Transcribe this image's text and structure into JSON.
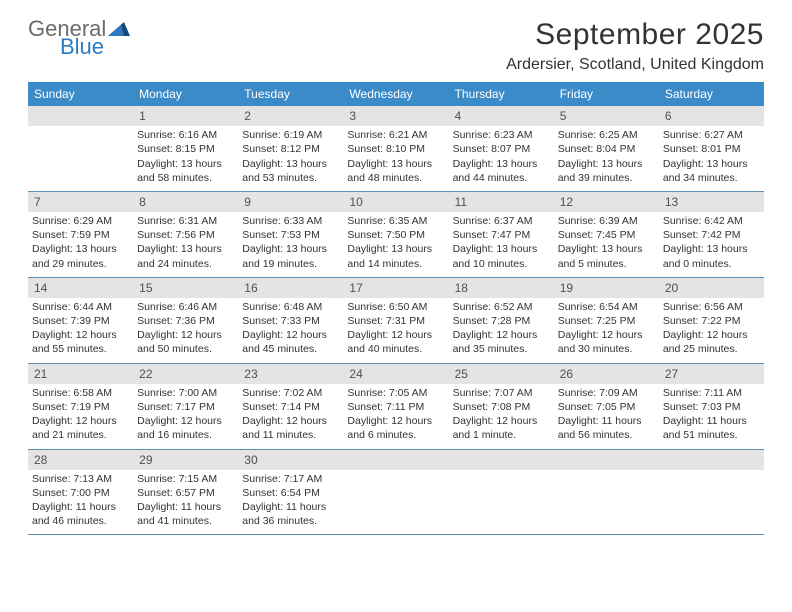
{
  "logo": {
    "text_general": "General",
    "text_blue": "Blue"
  },
  "title": "September 2025",
  "location": "Ardersier, Scotland, United Kingdom",
  "colors": {
    "header_bg": "#3b8bc9",
    "header_text": "#ffffff",
    "daynum_bg": "#e4e4e4",
    "row_border": "#5a8fb8",
    "logo_gray": "#6b6b6b",
    "logo_blue": "#2d7cc1"
  },
  "weekdays": [
    "Sunday",
    "Monday",
    "Tuesday",
    "Wednesday",
    "Thursday",
    "Friday",
    "Saturday"
  ],
  "weeks": [
    [
      {
        "num": "",
        "sunrise": "",
        "sunset": "",
        "daylight": ""
      },
      {
        "num": "1",
        "sunrise": "Sunrise: 6:16 AM",
        "sunset": "Sunset: 8:15 PM",
        "daylight": "Daylight: 13 hours and 58 minutes."
      },
      {
        "num": "2",
        "sunrise": "Sunrise: 6:19 AM",
        "sunset": "Sunset: 8:12 PM",
        "daylight": "Daylight: 13 hours and 53 minutes."
      },
      {
        "num": "3",
        "sunrise": "Sunrise: 6:21 AM",
        "sunset": "Sunset: 8:10 PM",
        "daylight": "Daylight: 13 hours and 48 minutes."
      },
      {
        "num": "4",
        "sunrise": "Sunrise: 6:23 AM",
        "sunset": "Sunset: 8:07 PM",
        "daylight": "Daylight: 13 hours and 44 minutes."
      },
      {
        "num": "5",
        "sunrise": "Sunrise: 6:25 AM",
        "sunset": "Sunset: 8:04 PM",
        "daylight": "Daylight: 13 hours and 39 minutes."
      },
      {
        "num": "6",
        "sunrise": "Sunrise: 6:27 AM",
        "sunset": "Sunset: 8:01 PM",
        "daylight": "Daylight: 13 hours and 34 minutes."
      }
    ],
    [
      {
        "num": "7",
        "sunrise": "Sunrise: 6:29 AM",
        "sunset": "Sunset: 7:59 PM",
        "daylight": "Daylight: 13 hours and 29 minutes."
      },
      {
        "num": "8",
        "sunrise": "Sunrise: 6:31 AM",
        "sunset": "Sunset: 7:56 PM",
        "daylight": "Daylight: 13 hours and 24 minutes."
      },
      {
        "num": "9",
        "sunrise": "Sunrise: 6:33 AM",
        "sunset": "Sunset: 7:53 PM",
        "daylight": "Daylight: 13 hours and 19 minutes."
      },
      {
        "num": "10",
        "sunrise": "Sunrise: 6:35 AM",
        "sunset": "Sunset: 7:50 PM",
        "daylight": "Daylight: 13 hours and 14 minutes."
      },
      {
        "num": "11",
        "sunrise": "Sunrise: 6:37 AM",
        "sunset": "Sunset: 7:47 PM",
        "daylight": "Daylight: 13 hours and 10 minutes."
      },
      {
        "num": "12",
        "sunrise": "Sunrise: 6:39 AM",
        "sunset": "Sunset: 7:45 PM",
        "daylight": "Daylight: 13 hours and 5 minutes."
      },
      {
        "num": "13",
        "sunrise": "Sunrise: 6:42 AM",
        "sunset": "Sunset: 7:42 PM",
        "daylight": "Daylight: 13 hours and 0 minutes."
      }
    ],
    [
      {
        "num": "14",
        "sunrise": "Sunrise: 6:44 AM",
        "sunset": "Sunset: 7:39 PM",
        "daylight": "Daylight: 12 hours and 55 minutes."
      },
      {
        "num": "15",
        "sunrise": "Sunrise: 6:46 AM",
        "sunset": "Sunset: 7:36 PM",
        "daylight": "Daylight: 12 hours and 50 minutes."
      },
      {
        "num": "16",
        "sunrise": "Sunrise: 6:48 AM",
        "sunset": "Sunset: 7:33 PM",
        "daylight": "Daylight: 12 hours and 45 minutes."
      },
      {
        "num": "17",
        "sunrise": "Sunrise: 6:50 AM",
        "sunset": "Sunset: 7:31 PM",
        "daylight": "Daylight: 12 hours and 40 minutes."
      },
      {
        "num": "18",
        "sunrise": "Sunrise: 6:52 AM",
        "sunset": "Sunset: 7:28 PM",
        "daylight": "Daylight: 12 hours and 35 minutes."
      },
      {
        "num": "19",
        "sunrise": "Sunrise: 6:54 AM",
        "sunset": "Sunset: 7:25 PM",
        "daylight": "Daylight: 12 hours and 30 minutes."
      },
      {
        "num": "20",
        "sunrise": "Sunrise: 6:56 AM",
        "sunset": "Sunset: 7:22 PM",
        "daylight": "Daylight: 12 hours and 25 minutes."
      }
    ],
    [
      {
        "num": "21",
        "sunrise": "Sunrise: 6:58 AM",
        "sunset": "Sunset: 7:19 PM",
        "daylight": "Daylight: 12 hours and 21 minutes."
      },
      {
        "num": "22",
        "sunrise": "Sunrise: 7:00 AM",
        "sunset": "Sunset: 7:17 PM",
        "daylight": "Daylight: 12 hours and 16 minutes."
      },
      {
        "num": "23",
        "sunrise": "Sunrise: 7:02 AM",
        "sunset": "Sunset: 7:14 PM",
        "daylight": "Daylight: 12 hours and 11 minutes."
      },
      {
        "num": "24",
        "sunrise": "Sunrise: 7:05 AM",
        "sunset": "Sunset: 7:11 PM",
        "daylight": "Daylight: 12 hours and 6 minutes."
      },
      {
        "num": "25",
        "sunrise": "Sunrise: 7:07 AM",
        "sunset": "Sunset: 7:08 PM",
        "daylight": "Daylight: 12 hours and 1 minute."
      },
      {
        "num": "26",
        "sunrise": "Sunrise: 7:09 AM",
        "sunset": "Sunset: 7:05 PM",
        "daylight": "Daylight: 11 hours and 56 minutes."
      },
      {
        "num": "27",
        "sunrise": "Sunrise: 7:11 AM",
        "sunset": "Sunset: 7:03 PM",
        "daylight": "Daylight: 11 hours and 51 minutes."
      }
    ],
    [
      {
        "num": "28",
        "sunrise": "Sunrise: 7:13 AM",
        "sunset": "Sunset: 7:00 PM",
        "daylight": "Daylight: 11 hours and 46 minutes."
      },
      {
        "num": "29",
        "sunrise": "Sunrise: 7:15 AM",
        "sunset": "Sunset: 6:57 PM",
        "daylight": "Daylight: 11 hours and 41 minutes."
      },
      {
        "num": "30",
        "sunrise": "Sunrise: 7:17 AM",
        "sunset": "Sunset: 6:54 PM",
        "daylight": "Daylight: 11 hours and 36 minutes."
      },
      {
        "num": "",
        "sunrise": "",
        "sunset": "",
        "daylight": ""
      },
      {
        "num": "",
        "sunrise": "",
        "sunset": "",
        "daylight": ""
      },
      {
        "num": "",
        "sunrise": "",
        "sunset": "",
        "daylight": ""
      },
      {
        "num": "",
        "sunrise": "",
        "sunset": "",
        "daylight": ""
      }
    ]
  ]
}
